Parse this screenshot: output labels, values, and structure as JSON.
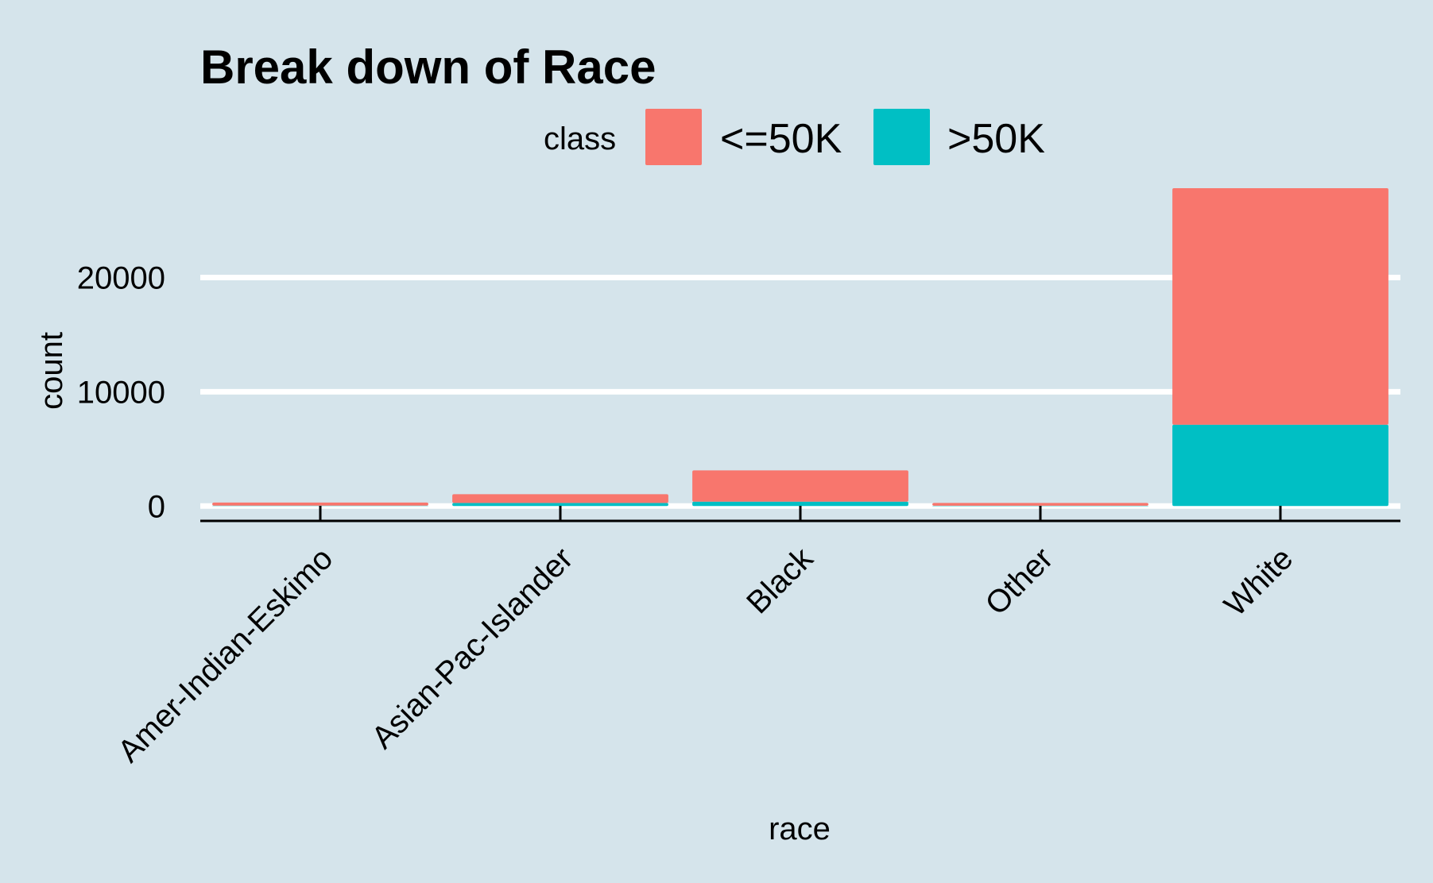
{
  "chart_data": {
    "type": "bar",
    "stacked": true,
    "title": "Break down of Race",
    "xlabel": "race",
    "ylabel": "count",
    "categories": [
      "Amer-Indian-Eskimo",
      "Asian-Pac-Islander",
      "Black",
      "Other",
      "White"
    ],
    "series": [
      {
        "name": "<=50K",
        "color": "#f8766d",
        "values": [
          275,
          763,
          2737,
          246,
          20699
        ]
      },
      {
        "name": ">50K",
        "color": "#00bfc4",
        "values": [
          36,
          276,
          387,
          25,
          7117
        ]
      }
    ],
    "ylim": [
      -1300,
      28300
    ],
    "yticks": [
      0,
      10000,
      20000
    ],
    "ytick_labels": [
      "0",
      "10000",
      "20000"
    ],
    "grid": true,
    "legend": {
      "title": "class",
      "position": "top"
    },
    "background": "#d5e4eb"
  }
}
